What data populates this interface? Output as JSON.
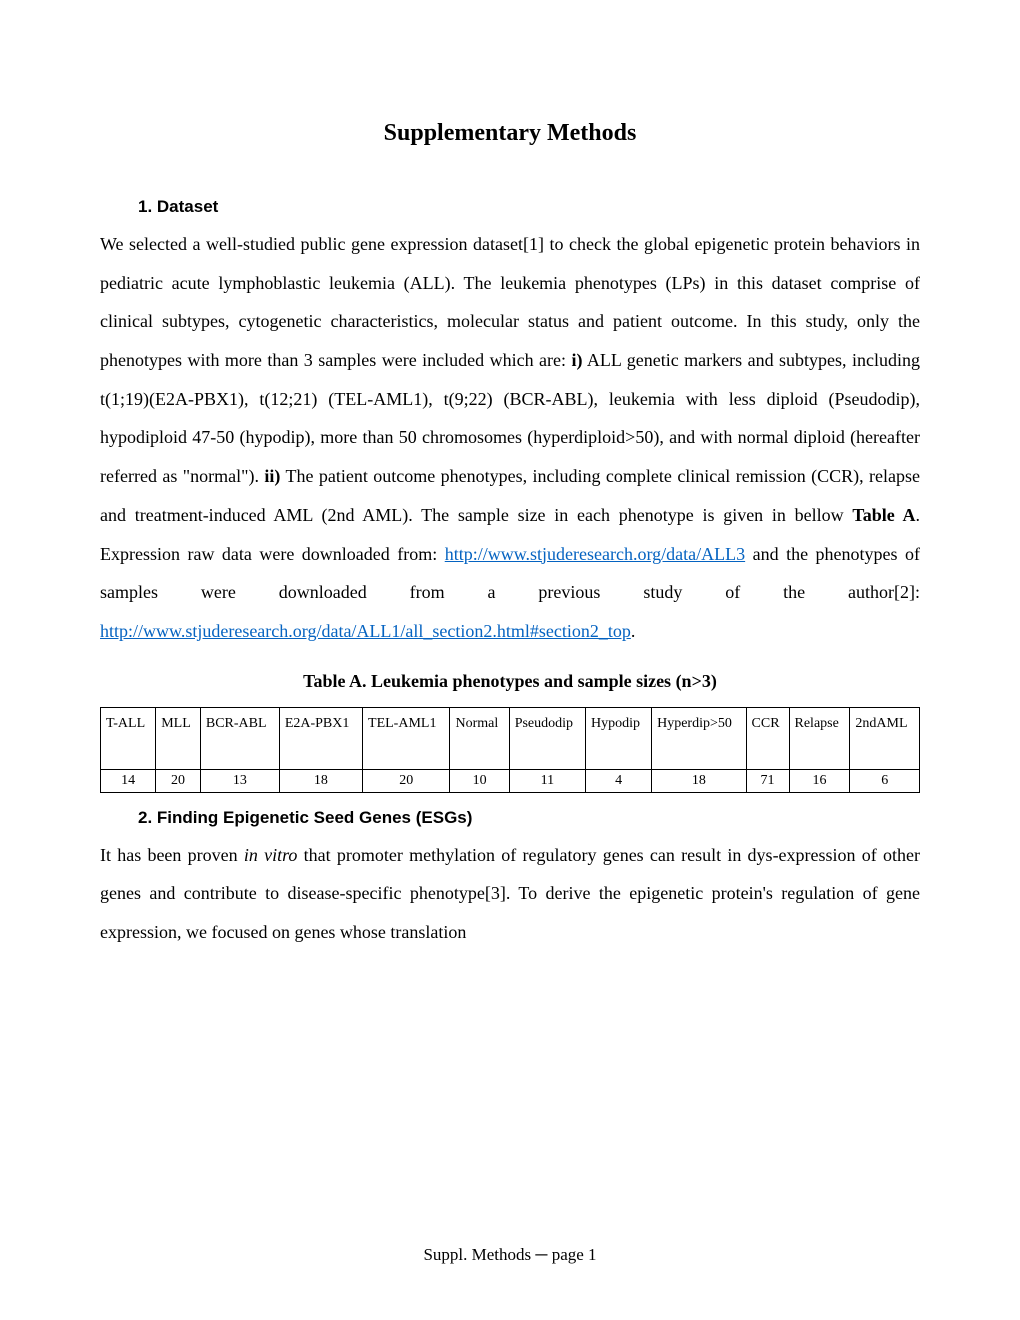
{
  "title": "Supplementary Methods",
  "section1": {
    "heading": "1.  Dataset",
    "para_part1": "We selected a well-studied public gene expression dataset[1] to check the global epigenetic protein behaviors in pediatric acute lymphoblastic leukemia (ALL). The leukemia phenotypes (LPs) in this dataset comprise of clinical subtypes, cytogenetic characteristics, molecular status and patient outcome.  In this study, only the phenotypes with more than 3 samples were included which are: ",
    "bold_i": "i)",
    "para_part2": " ALL genetic markers and subtypes, including t(1;19)(E2A-PBX1), t(12;21) (TEL-AML1), t(9;22) (BCR-ABL), leukemia with less diploid (Pseudodip), hypodiploid 47-50 (hypodip), more than 50 chromosomes (hyperdiploid>50), and with normal diploid (hereafter referred as \"normal\").  ",
    "bold_ii": "ii)",
    "para_part3": " The patient outcome phenotypes, including complete clinical remission (CCR), relapse and treatment-induced AML (2nd AML). The sample size in each phenotype is given in bellow ",
    "bold_tableA": "Table A",
    "para_part4": ".  Expression raw data were downloaded from: ",
    "link1": "http://www.stjuderesearch.org/data/ALL3",
    "para_part5": " and the phenotypes of samples were downloaded from a previous study of the author[2]: ",
    "link2": "http://www.stjuderesearch.org/data/ALL1/all_section2.html#section2_top",
    "para_part6": "."
  },
  "table": {
    "caption": "Table A. Leukemia phenotypes and sample sizes (n>3)",
    "headers": [
      "T-ALL",
      "MLL",
      "BCR-ABL",
      "E2A-PBX1",
      "TEL-AML1",
      "Normal",
      "Pseudodip",
      "Hypodip",
      "Hyperdip>50",
      "CCR",
      "Relapse",
      "2ndAML"
    ],
    "values": [
      "14",
      "20",
      "13",
      "18",
      "20",
      "10",
      "11",
      "4",
      "18",
      "71",
      "16",
      "6"
    ],
    "border_color": "#000000",
    "header_fontsize": 14,
    "data_fontsize": 14
  },
  "section2": {
    "heading": "2.  Finding Epigenetic Seed Genes (ESGs)",
    "para_part1": "It has been proven ",
    "italic": "in vitro",
    "para_part2": " that promoter methylation of regulatory genes can result in dys-expression of other genes and contribute to disease-specific phenotype[3]. To derive the epigenetic protein's regulation of gene expression, we focused on genes whose translation"
  },
  "footer": {
    "text_part1": "Suppl. Methods ",
    "dash": "─",
    "text_part2": " page 1"
  },
  "colors": {
    "link": "#0563c1",
    "text": "#000000",
    "background": "#ffffff"
  }
}
